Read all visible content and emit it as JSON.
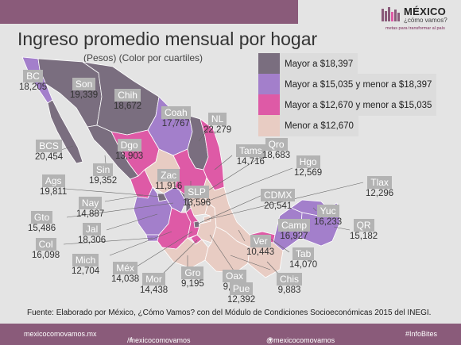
{
  "title": "Ingreso promedio mensual por hogar",
  "subtitle": "(Pesos) (Color por cuartiles)",
  "logo": {
    "name": "MÉXICO",
    "question": "¿cómo vamos?",
    "tagline": "metas para transformar al país"
  },
  "colors": {
    "q4": "#7a6e7f",
    "q3": "#a37fcb",
    "q2": "#de5aa6",
    "q1": "#e8ccc3",
    "brand": "#8a5b7a"
  },
  "legend": [
    {
      "label": "Mayor a $18,397",
      "quartile": "q4"
    },
    {
      "label": "Mayor a $15,035 y menor a $18,397",
      "quartile": "q3"
    },
    {
      "label": "Mayor a $12,670 y menor a $15,035",
      "quartile": "q2"
    },
    {
      "label": "Menor a $12,670",
      "quartile": "q1"
    }
  ],
  "states": [
    {
      "abbr": "BC",
      "value": "18,205",
      "quartile": "q3"
    },
    {
      "abbr": "Son",
      "value": "19,339",
      "quartile": "q4"
    },
    {
      "abbr": "Chih",
      "value": "18,672",
      "quartile": "q4"
    },
    {
      "abbr": "Coah",
      "value": "17,767",
      "quartile": "q3"
    },
    {
      "abbr": "NL",
      "value": "22,279",
      "quartile": "q4"
    },
    {
      "abbr": "BCS",
      "value": "20,454",
      "quartile": "q4"
    },
    {
      "abbr": "Dgo",
      "value": "13,903",
      "quartile": "q2"
    },
    {
      "abbr": "Tams",
      "value": "14,716",
      "quartile": "q2"
    },
    {
      "abbr": "Qro",
      "value": "18,683",
      "quartile": "q4"
    },
    {
      "abbr": "Sin",
      "value": "19,352",
      "quartile": "q4"
    },
    {
      "abbr": "Hgo",
      "value": "12,569",
      "quartile": "q1"
    },
    {
      "abbr": "Ags",
      "value": "19,811",
      "quartile": "q4"
    },
    {
      "abbr": "Zac",
      "value": "11,916",
      "quartile": "q1"
    },
    {
      "abbr": "SLP",
      "value": "13,596",
      "quartile": "q2"
    },
    {
      "abbr": "Tlax",
      "value": "12,296",
      "quartile": "q1"
    },
    {
      "abbr": "CDMX",
      "value": "20,541",
      "quartile": "q4"
    },
    {
      "abbr": "Nay",
      "value": "14,887",
      "quartile": "q2"
    },
    {
      "abbr": "Gto",
      "value": "15,486",
      "quartile": "q3"
    },
    {
      "abbr": "Jal",
      "value": "18,306",
      "quartile": "q3"
    },
    {
      "abbr": "Yuc",
      "value": "16,233",
      "quartile": "q3"
    },
    {
      "abbr": "Camp",
      "value": "16,927",
      "quartile": "q3"
    },
    {
      "abbr": "QR",
      "value": "15,182",
      "quartile": "q3"
    },
    {
      "abbr": "Col",
      "value": "16,098",
      "quartile": "q3"
    },
    {
      "abbr": "Ver",
      "value": "10,443",
      "quartile": "q1"
    },
    {
      "abbr": "Tab",
      "value": "14,070",
      "quartile": "q2"
    },
    {
      "abbr": "Mich",
      "value": "12,704",
      "quartile": "q2"
    },
    {
      "abbr": "Méx",
      "value": "14,038",
      "quartile": "q2"
    },
    {
      "abbr": "Mor",
      "value": "14,438",
      "quartile": "q2"
    },
    {
      "abbr": "Gro",
      "value": "9,195",
      "quartile": "q1"
    },
    {
      "abbr": "Oax",
      "value": "9,572",
      "quartile": "q1"
    },
    {
      "abbr": "Chis",
      "value": "9,883",
      "quartile": "q1"
    },
    {
      "abbr": "Pue",
      "value": "12,392",
      "quartile": "q1"
    }
  ],
  "source": "Fuente: Elaborado por México, ¿Cómo Vamos? con del Módulo de Condiciones Socioeconómicas 2015 del INEGI.",
  "footer": {
    "site": "mexicocomovamos.mx",
    "facebook": "/mexicocomovamos",
    "twitter": "@mexicocomovamos",
    "hashtag": "#InfoBites"
  }
}
